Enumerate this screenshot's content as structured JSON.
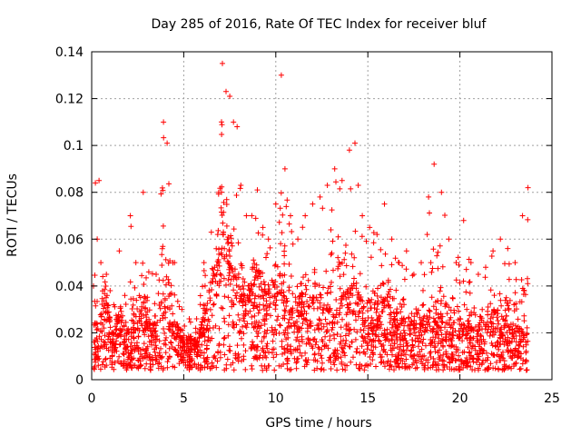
{
  "chart_data": {
    "type": "scatter",
    "title": "Day 285 of 2016, Rate Of TEC Index for receiver bluf",
    "xlabel": "GPS time / hours",
    "ylabel": "ROTI / TECUs",
    "xlim": [
      0,
      25
    ],
    "ylim": [
      0,
      0.14
    ],
    "xticks": [
      "0",
      "5",
      "10",
      "15",
      "20",
      "25"
    ],
    "yticks": [
      "0",
      "0.02",
      "0.04",
      "0.06",
      "0.08",
      "0.1",
      "0.12",
      "0.14"
    ],
    "grid": true,
    "marker": "+",
    "color": "#ff0000",
    "series": [
      {
        "name": "ROTI",
        "x": [
          0.1,
          0.2,
          0.3,
          0.4,
          0.5,
          0.6,
          0.8,
          1.0,
          1.2,
          1.5,
          1.8,
          2.1,
          2.4,
          2.8,
          3.1,
          3.5,
          3.9,
          4.1,
          4.5,
          4.9,
          5.3,
          5.7,
          6.1,
          6.5,
          6.9,
          7.1,
          7.3,
          7.5,
          7.7,
          7.9,
          8.1,
          8.4,
          8.7,
          9.0,
          9.3,
          9.6,
          10.0,
          10.3,
          10.5,
          10.8,
          11.2,
          11.6,
          12.0,
          12.4,
          12.8,
          13.2,
          13.6,
          14.0,
          14.3,
          14.7,
          15.1,
          15.5,
          15.9,
          16.3,
          16.7,
          17.1,
          17.5,
          17.9,
          18.3,
          18.6,
          19.0,
          19.4,
          19.8,
          20.2,
          20.6,
          21.0,
          21.4,
          21.8,
          22.2,
          22.6,
          23.0,
          23.4,
          23.7
        ],
        "y": [
          0.012,
          0.018,
          0.015,
          0.022,
          0.028,
          0.034,
          0.03,
          0.02,
          0.016,
          0.024,
          0.018,
          0.015,
          0.02,
          0.026,
          0.022,
          0.018,
          0.03,
          0.038,
          0.02,
          0.016,
          0.014,
          0.012,
          0.022,
          0.035,
          0.045,
          0.06,
          0.052,
          0.05,
          0.048,
          0.04,
          0.036,
          0.03,
          0.034,
          0.04,
          0.038,
          0.032,
          0.036,
          0.042,
          0.03,
          0.026,
          0.028,
          0.032,
          0.034,
          0.03,
          0.026,
          0.024,
          0.03,
          0.034,
          0.036,
          0.028,
          0.024,
          0.026,
          0.03,
          0.024,
          0.02,
          0.022,
          0.018,
          0.02,
          0.024,
          0.026,
          0.022,
          0.018,
          0.02,
          0.022,
          0.02,
          0.018,
          0.02,
          0.024,
          0.022,
          0.02,
          0.018,
          0.016,
          0.014
        ],
        "upper": [
          0.04,
          0.084,
          0.06,
          0.085,
          0.05,
          0.044,
          0.045,
          0.038,
          0.032,
          0.055,
          0.036,
          0.07,
          0.05,
          0.08,
          0.046,
          0.045,
          0.11,
          0.101,
          0.05,
          0.03,
          0.026,
          0.026,
          0.05,
          0.063,
          0.08,
          0.135,
          0.123,
          0.121,
          0.11,
          0.108,
          0.083,
          0.07,
          0.07,
          0.081,
          0.065,
          0.06,
          0.075,
          0.13,
          0.09,
          0.07,
          0.06,
          0.07,
          0.075,
          0.078,
          0.083,
          0.09,
          0.085,
          0.098,
          0.101,
          0.07,
          0.065,
          0.062,
          0.075,
          0.06,
          0.05,
          0.055,
          0.045,
          0.05,
          0.078,
          0.092,
          0.08,
          0.06,
          0.05,
          0.068,
          0.05,
          0.045,
          0.048,
          0.055,
          0.06,
          0.056,
          0.05,
          0.07,
          0.082
        ]
      }
    ]
  }
}
